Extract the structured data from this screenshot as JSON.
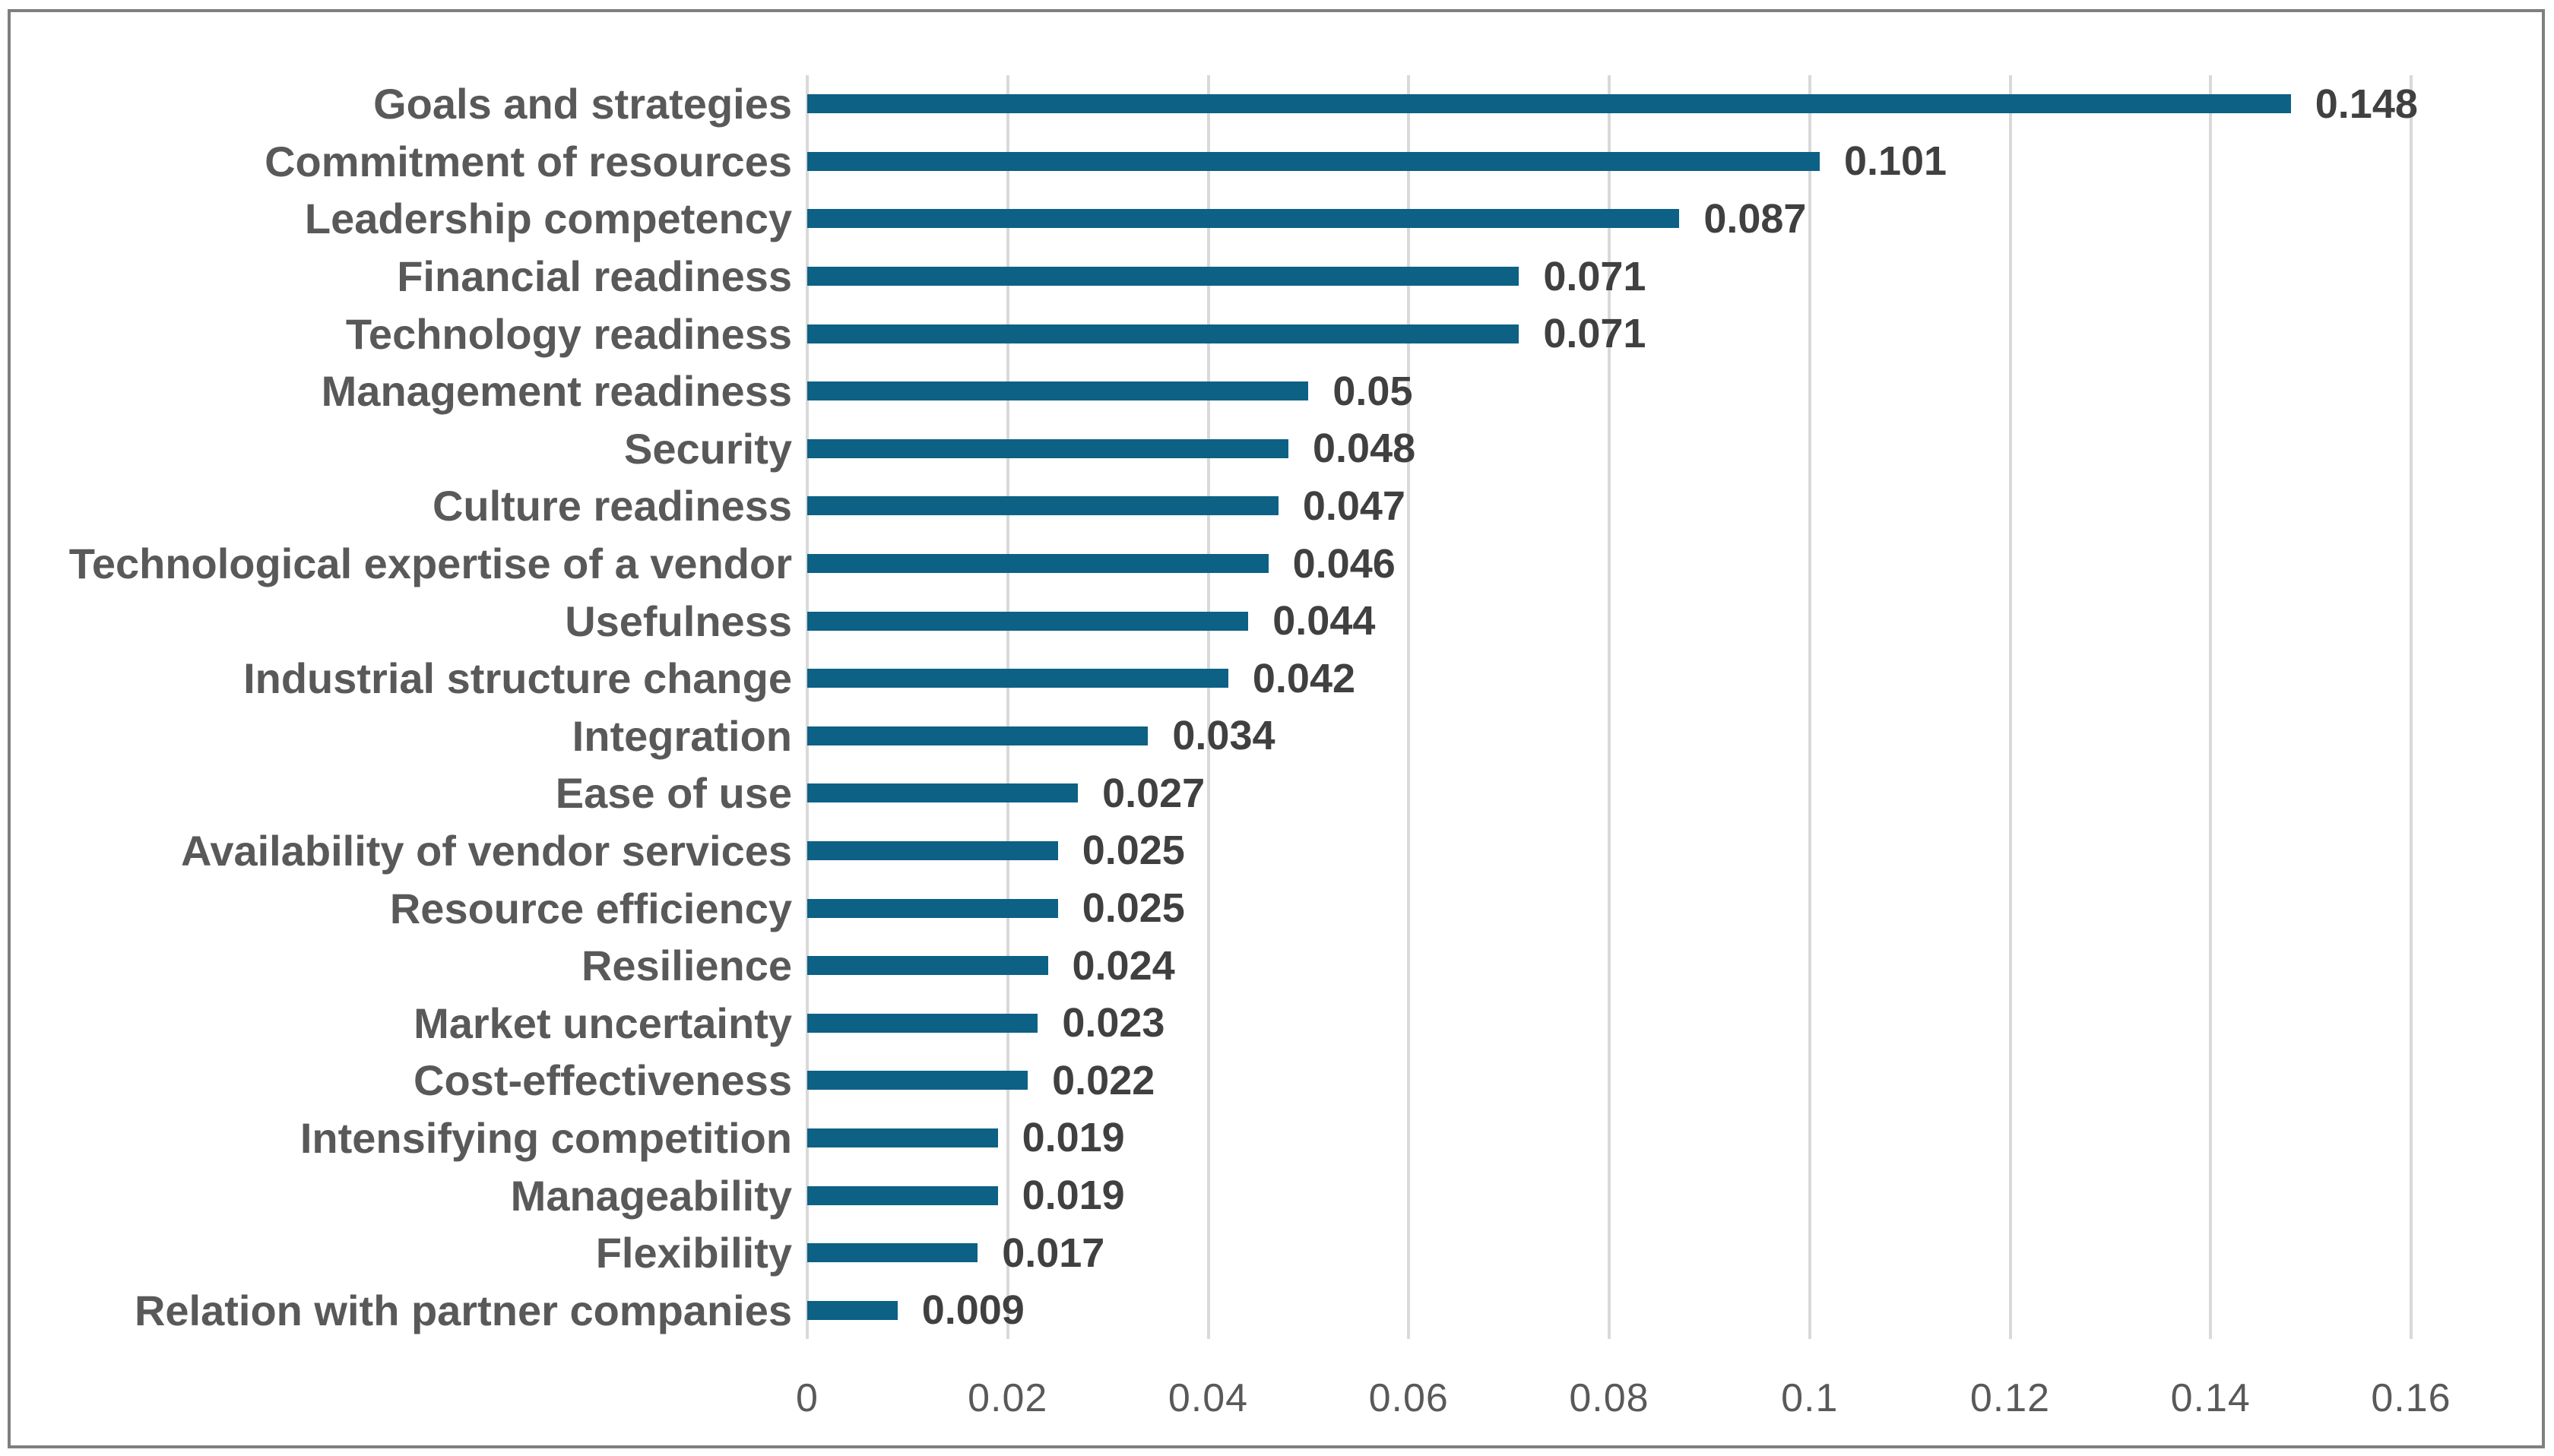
{
  "chart_data": {
    "type": "bar",
    "orientation": "horizontal",
    "title": "",
    "xlabel": "",
    "ylabel": "",
    "xlim": [
      0,
      0.16
    ],
    "x_tick_values": [
      0,
      0.02,
      0.04,
      0.06,
      0.08,
      0.1,
      0.12,
      0.14,
      0.16
    ],
    "x_tick_labels": [
      "0",
      "0.02",
      "0.04",
      "0.06",
      "0.08",
      "0.1",
      "0.12",
      "0.14",
      "0.16"
    ],
    "grid": "vertical-gridlines-on",
    "legend": "none",
    "categories": [
      "Goals and strategies",
      "Commitment of resources",
      "Leadership competency",
      "Financial readiness",
      "Technology readiness",
      "Management readiness",
      "Security",
      "Culture readiness",
      "Technological expertise of a vendor",
      "Usefulness",
      "Industrial structure change",
      "Integration",
      "Ease of use",
      "Availability of vendor services",
      "Resource efficiency",
      "Resilience",
      "Market uncertainty",
      "Cost-effectiveness",
      "Intensifying competition",
      "Manageability",
      "Flexibility",
      "Relation with partner companies"
    ],
    "values": [
      0.148,
      0.101,
      0.087,
      0.071,
      0.071,
      0.05,
      0.048,
      0.047,
      0.046,
      0.044,
      0.042,
      0.034,
      0.027,
      0.025,
      0.025,
      0.024,
      0.023,
      0.022,
      0.019,
      0.019,
      0.017,
      0.009
    ],
    "value_labels": [
      "0.148",
      "0.101",
      "0.087",
      "0.071",
      "0.071",
      "0.05",
      "0.048",
      "0.047",
      "0.046",
      "0.044",
      "0.042",
      "0.034",
      "0.027",
      "0.025",
      "0.025",
      "0.024",
      "0.023",
      "0.022",
      "0.019",
      "0.019",
      "0.017",
      "0.009"
    ]
  },
  "colors": {
    "bar": "#0c6185",
    "gridline": "#d9d9d9",
    "category_text": "#595959",
    "value_text": "#404040",
    "tick_text": "#595959",
    "frame_border": "#7f7f7f",
    "background": "#ffffff"
  }
}
